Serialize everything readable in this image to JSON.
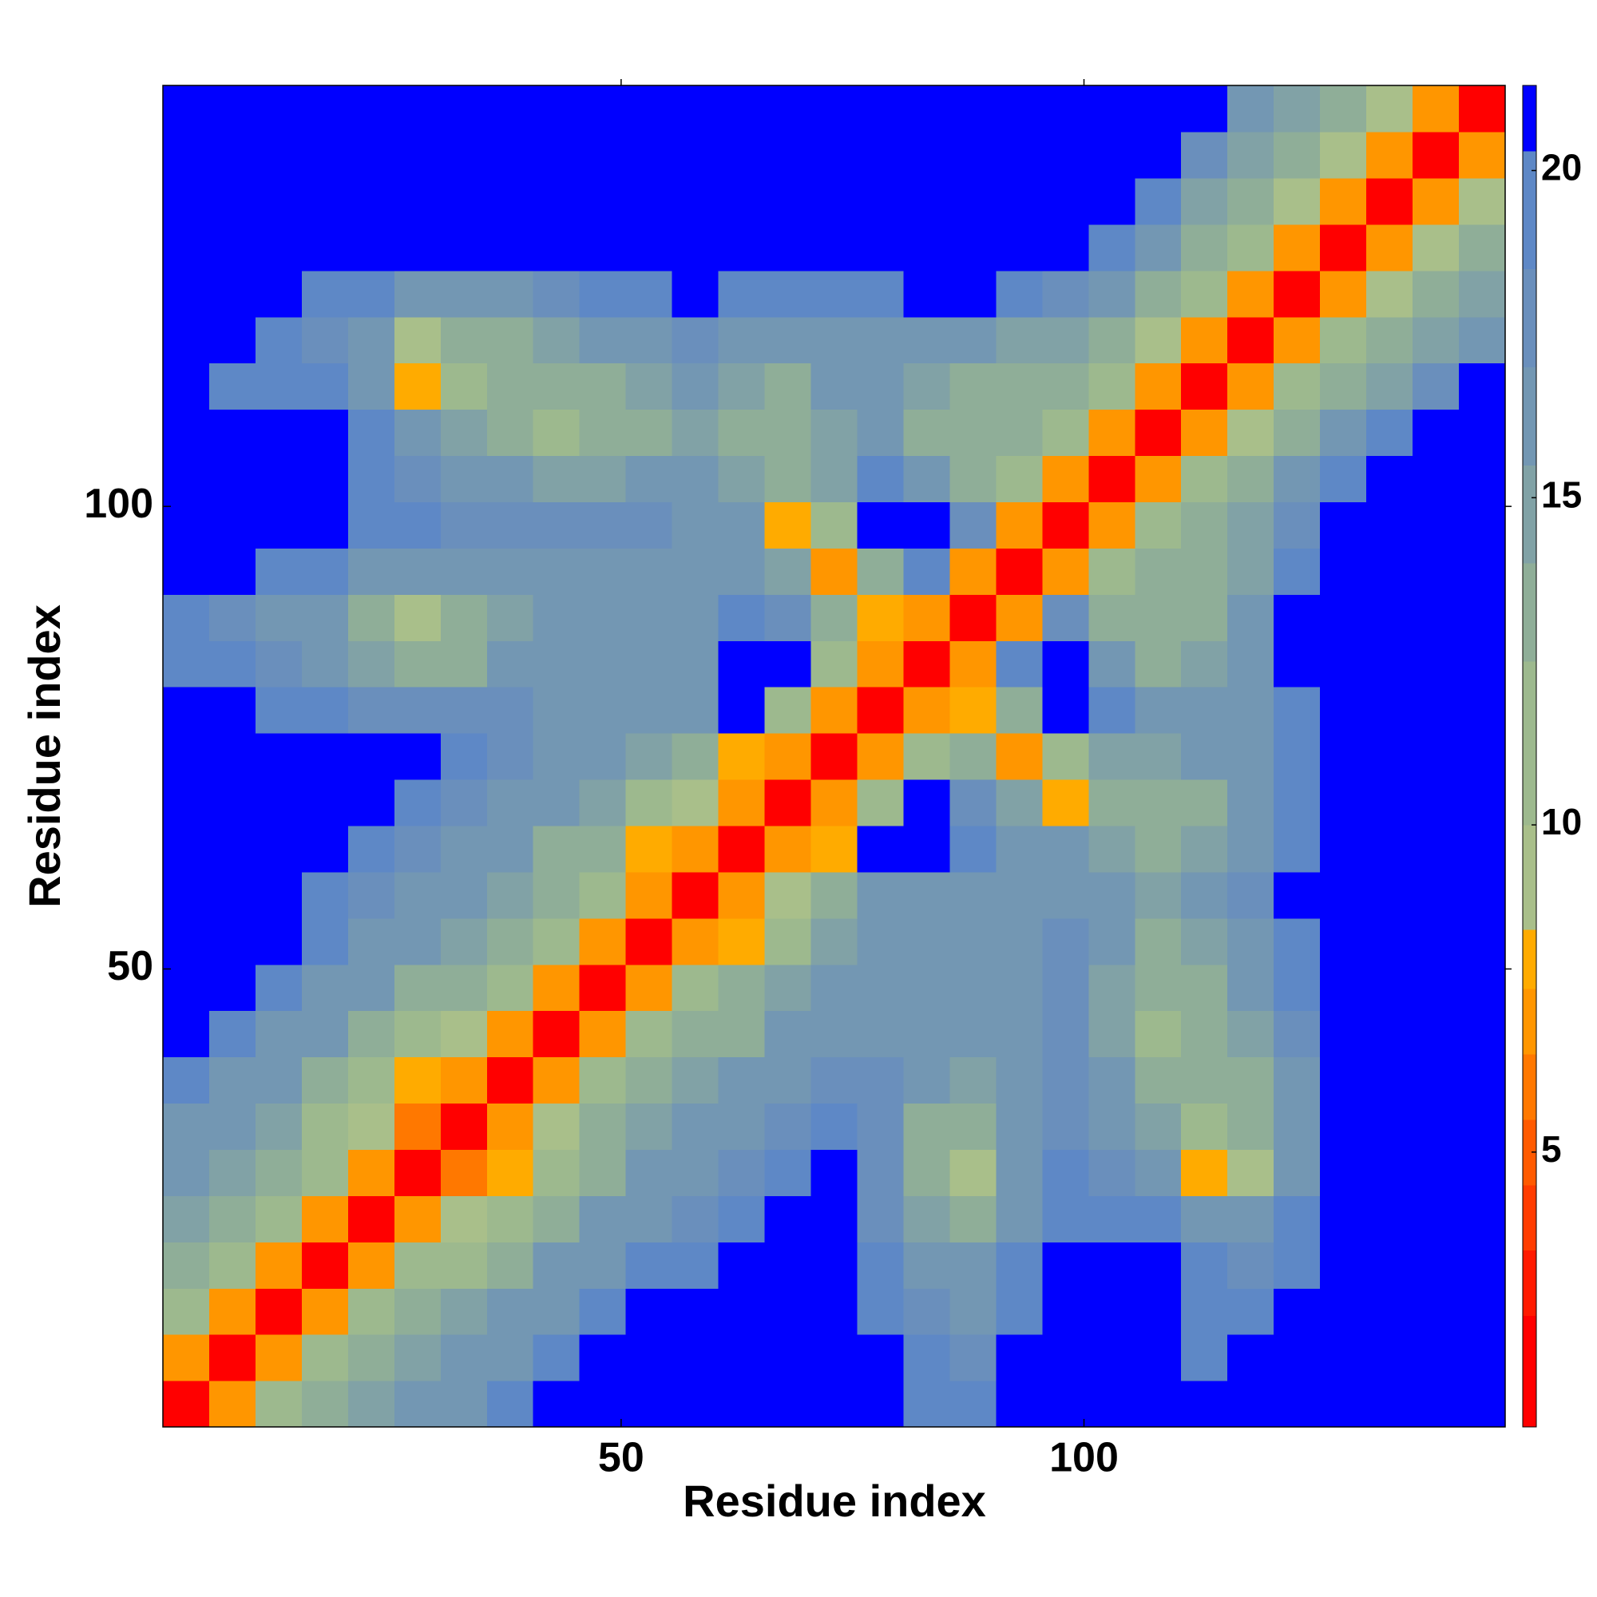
{
  "chart_data": {
    "type": "heatmap",
    "x_label": "Residue index",
    "y_label": "Residue index",
    "x": [
      3,
      8,
      13,
      18,
      23,
      28,
      33,
      38,
      43,
      48,
      53,
      58,
      63,
      68,
      73,
      78,
      83,
      88,
      93,
      98,
      103,
      108,
      113,
      118,
      123,
      128,
      133,
      138,
      143
    ],
    "y": [
      3,
      8,
      13,
      18,
      23,
      28,
      33,
      38,
      43,
      48,
      53,
      58,
      63,
      68,
      73,
      78,
      83,
      88,
      93,
      98,
      103,
      108,
      113,
      118,
      123,
      128,
      133,
      138,
      143
    ],
    "xlim": [
      0.5,
      145.5
    ],
    "ylim": [
      0.5,
      145.5
    ],
    "xticks": [
      50,
      100
    ],
    "yticks": [
      50,
      100
    ],
    "zlim": [
      0.8,
      21.3
    ],
    "cbar_ticks": [
      5,
      10,
      15,
      20
    ],
    "colorscale": [
      [
        2.5,
        "#ff0000"
      ],
      [
        3.5,
        "#ff1a00"
      ],
      [
        4.5,
        "#ff3c00"
      ],
      [
        5.5,
        "#ff5a00"
      ],
      [
        6.5,
        "#ff7800"
      ],
      [
        7.5,
        "#ff9600"
      ],
      [
        8.4,
        "#ffab00"
      ],
      [
        10,
        "#a9bf8a"
      ],
      [
        12.5,
        "#9db98e"
      ],
      [
        14,
        "#8fae98"
      ],
      [
        15.5,
        "#81a2a6"
      ],
      [
        17,
        "#7397b3"
      ],
      [
        18.5,
        "#6a8fbc"
      ],
      [
        20.3,
        "#5e88c6"
      ],
      [
        21.3,
        "#0000ff"
      ]
    ],
    "z": [
      [
        2,
        7,
        11,
        14,
        15,
        16,
        17,
        19,
        21,
        22,
        22,
        22,
        22,
        22,
        22,
        22,
        20,
        19,
        21,
        22,
        22,
        22,
        21,
        21,
        22,
        22,
        22,
        22,
        22
      ],
      [
        7,
        2,
        7,
        11,
        14,
        15,
        16,
        17,
        19,
        21,
        22,
        22,
        22,
        22,
        22,
        22,
        19,
        18,
        21,
        22,
        22,
        22,
        20,
        21,
        22,
        22,
        22,
        22,
        22
      ],
      [
        11,
        7,
        2,
        7,
        11,
        13,
        15,
        16,
        17,
        19,
        21,
        22,
        22,
        22,
        22,
        20,
        18,
        17,
        20,
        22,
        22,
        22,
        20,
        19,
        21,
        22,
        22,
        22,
        22
      ],
      [
        14,
        11,
        7,
        2,
        7,
        11,
        12,
        14,
        16,
        17,
        19,
        20,
        21,
        22,
        22,
        19,
        17,
        16,
        19,
        21,
        22,
        21,
        19,
        18,
        20,
        22,
        22,
        22,
        22
      ],
      [
        15,
        14,
        11,
        7,
        2,
        7,
        9,
        12,
        14,
        16,
        17,
        18,
        19,
        21,
        22,
        18,
        15,
        14,
        17,
        20,
        20,
        19,
        17,
        16,
        19,
        22,
        22,
        22,
        22
      ],
      [
        16,
        15,
        13,
        11,
        7,
        2,
        6,
        8,
        12,
        14,
        16,
        17,
        18,
        19,
        21,
        18,
        14,
        9,
        16,
        19,
        18,
        17,
        8,
        10,
        17,
        22,
        22,
        22,
        22
      ],
      [
        17,
        16,
        15,
        12,
        9,
        6,
        2,
        7,
        10,
        13,
        15,
        16,
        17,
        18,
        20,
        18,
        14,
        13,
        16,
        18,
        17,
        15,
        12,
        13,
        17,
        22,
        22,
        22,
        22
      ],
      [
        19,
        17,
        16,
        14,
        12,
        8,
        7,
        2,
        7,
        11,
        13,
        15,
        16,
        17,
        18,
        18,
        16,
        15,
        17,
        18,
        16,
        14,
        13,
        14,
        17,
        22,
        22,
        22,
        22
      ],
      [
        21,
        19,
        17,
        16,
        14,
        12,
        10,
        7,
        2,
        7,
        11,
        13,
        14,
        16,
        17,
        17,
        17,
        16,
        17,
        18,
        15,
        11,
        13,
        15,
        18,
        22,
        22,
        22,
        22
      ],
      [
        22,
        21,
        19,
        17,
        16,
        14,
        13,
        11,
        7,
        2,
        7,
        11,
        13,
        15,
        16,
        17,
        17,
        16,
        17,
        18,
        15,
        13,
        14,
        16,
        19,
        22,
        22,
        22,
        22
      ],
      [
        22,
        22,
        21,
        19,
        17,
        16,
        15,
        13,
        11,
        7,
        2,
        7,
        8,
        12,
        15,
        17,
        17,
        16,
        17,
        18,
        16,
        14,
        15,
        17,
        20,
        22,
        22,
        22,
        22
      ],
      [
        22,
        22,
        22,
        20,
        18,
        17,
        16,
        15,
        13,
        11,
        7,
        2,
        7,
        10,
        13,
        16,
        17,
        16,
        17,
        17,
        16,
        15,
        16,
        18,
        21,
        22,
        22,
        22,
        22
      ],
      [
        22,
        22,
        22,
        21,
        19,
        18,
        17,
        16,
        14,
        13,
        8,
        7,
        2,
        7,
        8,
        21,
        22,
        19,
        16,
        16,
        15,
        14,
        15,
        17,
        20,
        22,
        22,
        22,
        22
      ],
      [
        22,
        22,
        22,
        22,
        21,
        19,
        18,
        17,
        16,
        15,
        12,
        10,
        7,
        2,
        7,
        12,
        21,
        18,
        15,
        8,
        13,
        13,
        14,
        16,
        19,
        22,
        22,
        22,
        22
      ],
      [
        22,
        22,
        22,
        22,
        22,
        21,
        20,
        18,
        17,
        16,
        15,
        13,
        8,
        7,
        2,
        7,
        11,
        13,
        7,
        12,
        15,
        15,
        16,
        17,
        20,
        22,
        22,
        22,
        22
      ],
      [
        22,
        22,
        20,
        19,
        18,
        18,
        18,
        18,
        17,
        17,
        17,
        16,
        21,
        12,
        7,
        2,
        7,
        8,
        13,
        21,
        19,
        16,
        16,
        17,
        20,
        22,
        22,
        22,
        22
      ],
      [
        20,
        19,
        18,
        17,
        15,
        14,
        14,
        16,
        17,
        17,
        17,
        17,
        22,
        21,
        11,
        7,
        2,
        7,
        20,
        22,
        17,
        14,
        15,
        17,
        21,
        22,
        22,
        22,
        22
      ],
      [
        19,
        18,
        17,
        16,
        14,
        9,
        13,
        15,
        16,
        16,
        16,
        16,
        19,
        18,
        13,
        8,
        7,
        2,
        7,
        18,
        14,
        13,
        14,
        17,
        21,
        22,
        22,
        22,
        22
      ],
      [
        21,
        21,
        20,
        19,
        17,
        16,
        16,
        17,
        17,
        17,
        17,
        17,
        16,
        15,
        7,
        13,
        20,
        7,
        2,
        7,
        11,
        13,
        14,
        15,
        19,
        22,
        22,
        22,
        22
      ],
      [
        22,
        22,
        22,
        21,
        20,
        19,
        18,
        18,
        18,
        18,
        18,
        17,
        16,
        8,
        12,
        21,
        22,
        18,
        7,
        2,
        7,
        11,
        13,
        15,
        18,
        21,
        22,
        22,
        22
      ],
      [
        22,
        22,
        22,
        22,
        20,
        18,
        17,
        16,
        15,
        15,
        16,
        16,
        15,
        13,
        15,
        19,
        17,
        14,
        11,
        7,
        2,
        7,
        11,
        13,
        16,
        19,
        21,
        22,
        22
      ],
      [
        22,
        22,
        22,
        21,
        19,
        17,
        15,
        14,
        11,
        13,
        14,
        15,
        14,
        13,
        15,
        16,
        14,
        13,
        13,
        11,
        7,
        2,
        7,
        10,
        13,
        16,
        19,
        21,
        22
      ],
      [
        21,
        20,
        20,
        19,
        17,
        8,
        12,
        13,
        13,
        14,
        15,
        16,
        15,
        14,
        16,
        16,
        15,
        14,
        14,
        13,
        11,
        7,
        2,
        7,
        11,
        13,
        15,
        18,
        21
      ],
      [
        21,
        21,
        19,
        18,
        16,
        10,
        13,
        14,
        15,
        16,
        17,
        18,
        17,
        16,
        17,
        17,
        17,
        17,
        15,
        15,
        13,
        10,
        7,
        2,
        7,
        11,
        13,
        15,
        17
      ],
      [
        22,
        22,
        21,
        20,
        19,
        17,
        17,
        17,
        18,
        19,
        20,
        21,
        20,
        19,
        20,
        20,
        21,
        21,
        19,
        18,
        16,
        13,
        11,
        7,
        2,
        7,
        10,
        13,
        15
      ],
      [
        22,
        22,
        22,
        22,
        22,
        22,
        22,
        22,
        22,
        22,
        22,
        22,
        22,
        22,
        22,
        22,
        22,
        22,
        22,
        21,
        19,
        16,
        13,
        11,
        7,
        2,
        7,
        10,
        13
      ],
      [
        22,
        22,
        22,
        22,
        22,
        22,
        22,
        22,
        22,
        22,
        22,
        22,
        22,
        22,
        22,
        22,
        22,
        22,
        22,
        22,
        21,
        19,
        15,
        13,
        10,
        7,
        2,
        7,
        10
      ],
      [
        22,
        22,
        22,
        22,
        22,
        22,
        22,
        22,
        22,
        22,
        22,
        22,
        22,
        22,
        22,
        22,
        22,
        22,
        22,
        22,
        22,
        21,
        18,
        15,
        13,
        10,
        7,
        2,
        7
      ],
      [
        22,
        22,
        22,
        22,
        22,
        22,
        22,
        22,
        22,
        22,
        22,
        22,
        22,
        22,
        22,
        22,
        22,
        22,
        22,
        22,
        22,
        22,
        21,
        17,
        15,
        13,
        10,
        7,
        2
      ]
    ]
  }
}
